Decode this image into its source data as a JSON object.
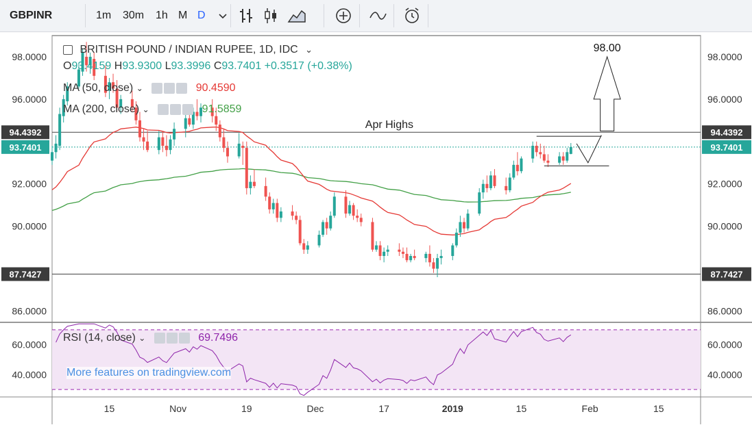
{
  "toolbar": {
    "symbol": "GBPINR",
    "intervals": [
      "1m",
      "30m",
      "1h",
      "M",
      "D"
    ],
    "active_interval": "D",
    "icons": [
      "chevron-down-icon",
      "bar-style-icon",
      "candle-style-icon",
      "area-style-icon",
      "add-indicator-icon",
      "compare-icon",
      "alert-icon"
    ]
  },
  "legend": {
    "title": "BRITISH POUND / INDIAN RUPEE, 1D, IDC",
    "ohlc": {
      "o_label": "O",
      "o": "93.4159",
      "h_label": "H",
      "h": "93.9300",
      "l_label": "L",
      "l": "93.3996",
      "c_label": "C",
      "c": "93.7401",
      "change": "+0.3517 (+0.38%)"
    },
    "ma50": {
      "label": "MA (50, close)",
      "value": "90.4590"
    },
    "ma200": {
      "label": "MA (200, close)",
      "value": "91.5859"
    },
    "rsi": {
      "label": "RSI (14, close)",
      "value": "69.7496"
    }
  },
  "watermark": "More features on tradingview.com",
  "colors": {
    "up": "#26a69a",
    "down": "#ef5350",
    "ma50": "#e53935",
    "ma200": "#43a047",
    "rsi": "#8e24aa",
    "rsi_band": "#f3e5f5",
    "accent": "#2962ff"
  },
  "chart_data": {
    "type": "candlestick",
    "ylim": [
      85.5,
      99.0
    ],
    "price_ticks": [
      "98.0000",
      "96.0000",
      "92.0000",
      "90.0000",
      "86.0000"
    ],
    "price_tick_values": [
      98,
      96,
      92,
      90,
      86
    ],
    "horizontal_levels": [
      {
        "value": 94.4392,
        "label": "94.4392"
      },
      {
        "value": 87.7427,
        "label": "87.7427"
      }
    ],
    "current_price": {
      "value": 93.7401,
      "label": "93.7401"
    },
    "x_ticks": [
      "15",
      "Nov",
      "19",
      "Dec",
      "17",
      "2019",
      "15",
      "Feb",
      "15"
    ],
    "x_tick_days": [
      15,
      33,
      51,
      69,
      87,
      105,
      123,
      141,
      159
    ],
    "candles": [
      [
        93.1,
        93.8,
        92.9,
        93.5
      ],
      [
        93.5,
        94.3,
        93.2,
        93.9
      ],
      [
        93.8,
        95.6,
        93.6,
        95.3
      ],
      [
        95.2,
        96.2,
        94.9,
        96.0
      ],
      [
        95.9,
        96.8,
        95.7,
        96.6
      ],
      [
        96.6,
        97.7,
        96.5,
        97.4
      ],
      [
        97.3,
        98.4,
        97.1,
        98.2
      ],
      [
        98.0,
        98.7,
        97.3,
        97.6
      ],
      [
        97.6,
        98.2,
        97.2,
        98.0
      ],
      [
        97.9,
        98.2,
        96.9,
        97.1
      ],
      [
        97.1,
        97.6,
        96.1,
        96.3
      ],
      [
        96.4,
        97.0,
        96.0,
        96.8
      ],
      [
        96.8,
        97.2,
        96.3,
        96.5
      ],
      [
        96.5,
        96.9,
        95.4,
        95.6
      ],
      [
        95.6,
        96.2,
        95.3,
        96.0
      ],
      [
        96.0,
        96.4,
        95.4,
        95.6
      ],
      [
        95.6,
        95.9,
        94.8,
        95.0
      ],
      [
        95.0,
        95.4,
        94.0,
        94.2
      ],
      [
        94.2,
        94.6,
        93.6,
        94.0
      ],
      [
        94.0,
        94.5,
        93.5,
        93.6
      ],
      [
        93.6,
        94.5,
        93.4,
        94.2
      ],
      [
        94.2,
        94.5,
        93.5,
        93.8
      ],
      [
        93.8,
        94.3,
        93.3,
        93.6
      ],
      [
        93.6,
        94.3,
        93.4,
        94.1
      ],
      [
        94.1,
        94.9,
        93.8,
        94.6
      ],
      [
        94.6,
        95.3,
        94.2,
        95.1
      ],
      [
        95.1,
        95.5,
        94.7,
        94.8
      ],
      [
        94.8,
        95.6,
        94.6,
        95.4
      ],
      [
        95.4,
        96.0,
        95.0,
        95.2
      ],
      [
        95.2,
        95.8,
        94.9,
        95.6
      ],
      [
        95.6,
        96.0,
        94.9,
        95.2
      ],
      [
        95.2,
        95.6,
        94.5,
        94.8
      ],
      [
        94.8,
        95.0,
        94.0,
        94.2
      ],
      [
        94.2,
        94.6,
        93.5,
        93.7
      ],
      [
        93.7,
        94.0,
        93.0,
        93.3
      ],
      [
        93.3,
        94.4,
        93.2,
        93.9
      ],
      [
        93.8,
        94.0,
        92.9,
        93.7
      ],
      [
        93.7,
        94.0,
        91.5,
        91.8
      ],
      [
        91.8,
        92.4,
        91.5,
        92.1
      ],
      [
        92.1,
        92.7,
        91.8,
        91.9
      ],
      [
        91.9,
        92.3,
        91.2,
        91.4
      ],
      [
        91.4,
        91.6,
        90.6,
        90.8
      ],
      [
        90.8,
        91.3,
        90.6,
        91.1
      ],
      [
        91.1,
        91.3,
        90.2,
        90.4
      ],
      [
        90.4,
        90.9,
        90.2,
        90.7
      ],
      [
        90.7,
        91.0,
        90.3,
        90.5
      ],
      [
        90.5,
        90.7,
        90.1,
        90.3
      ],
      [
        90.3,
        90.5,
        89.1,
        89.2
      ],
      [
        89.2,
        89.4,
        88.7,
        88.9
      ],
      [
        88.9,
        89.3,
        88.7,
        89.1
      ],
      [
        89.1,
        89.8,
        89.0,
        89.6
      ],
      [
        89.6,
        90.3,
        89.5,
        90.2
      ],
      [
        90.2,
        90.4,
        89.6,
        89.9
      ],
      [
        89.9,
        90.7,
        89.8,
        90.5
      ],
      [
        90.5,
        91.6,
        90.4,
        91.4
      ],
      [
        91.4,
        91.7,
        90.4,
        90.6
      ],
      [
        90.6,
        91.2,
        90.5,
        91.0
      ],
      [
        91.0,
        91.1,
        90.3,
        90.5
      ],
      [
        90.5,
        90.8,
        90.2,
        90.4
      ],
      [
        90.4,
        90.6,
        90.0,
        90.2
      ],
      [
        90.2,
        90.4,
        88.8,
        88.9
      ],
      [
        88.9,
        89.3,
        88.8,
        89.1
      ],
      [
        89.1,
        89.3,
        88.4,
        88.6
      ],
      [
        88.6,
        89.0,
        88.3,
        88.8
      ],
      [
        88.8,
        89.1,
        88.6,
        88.9
      ],
      [
        88.9,
        89.2,
        88.6,
        88.8
      ],
      [
        88.8,
        89.0,
        88.5,
        88.7
      ],
      [
        88.7,
        89.0,
        88.3,
        88.4
      ],
      [
        88.4,
        88.7,
        88.3,
        88.6
      ],
      [
        88.6,
        88.9,
        88.4,
        88.5
      ],
      [
        88.5,
        88.8,
        88.3,
        88.7
      ],
      [
        88.7,
        89.1,
        88.1,
        88.3
      ],
      [
        88.3,
        88.5,
        87.8,
        88.0
      ],
      [
        88.0,
        88.7,
        87.6,
        88.5
      ],
      [
        88.5,
        88.9,
        88.2,
        88.6
      ],
      [
        88.6,
        89.2,
        88.4,
        89.1
      ],
      [
        89.1,
        89.9,
        89.0,
        89.7
      ],
      [
        89.7,
        90.5,
        89.5,
        90.2
      ],
      [
        90.2,
        90.4,
        89.7,
        89.9
      ],
      [
        89.9,
        90.8,
        89.8,
        90.6
      ],
      [
        90.6,
        91.8,
        90.5,
        91.6
      ],
      [
        91.6,
        92.2,
        91.3,
        92.0
      ],
      [
        92.0,
        92.4,
        91.6,
        91.8
      ],
      [
        91.8,
        92.6,
        91.7,
        92.4
      ],
      [
        92.4,
        92.7,
        91.8,
        91.9
      ],
      [
        91.9,
        92.3,
        91.5,
        91.7
      ],
      [
        91.7,
        92.5,
        91.6,
        92.3
      ],
      [
        92.3,
        93.1,
        92.2,
        92.9
      ],
      [
        92.9,
        93.5,
        92.4,
        92.6
      ],
      [
        92.6,
        93.3,
        92.5,
        93.2
      ],
      [
        93.2,
        94.0,
        93.0,
        93.8
      ],
      [
        93.8,
        94.0,
        93.3,
        93.5
      ],
      [
        93.5,
        93.9,
        93.2,
        93.4
      ],
      [
        93.4,
        93.8,
        93.0,
        93.1
      ],
      [
        93.1,
        93.4,
        92.8,
        93.0
      ],
      [
        93.0,
        93.5,
        92.9,
        93.3
      ],
      [
        93.3,
        93.5,
        92.9,
        93.1
      ],
      [
        93.1,
        93.7,
        93.0,
        93.5
      ],
      [
        93.4159,
        93.93,
        93.3996,
        93.7401
      ]
    ],
    "annotations": [
      {
        "text": "Apr Highs",
        "type": "label"
      },
      {
        "text": "98.00",
        "type": "target-arrow"
      }
    ],
    "rsi": {
      "ylim": [
        25,
        75
      ],
      "ticks": [
        "60.0000",
        "40.0000"
      ],
      "tick_values": [
        60,
        40
      ],
      "band": [
        30,
        70
      ],
      "current": "69.7496"
    }
  }
}
